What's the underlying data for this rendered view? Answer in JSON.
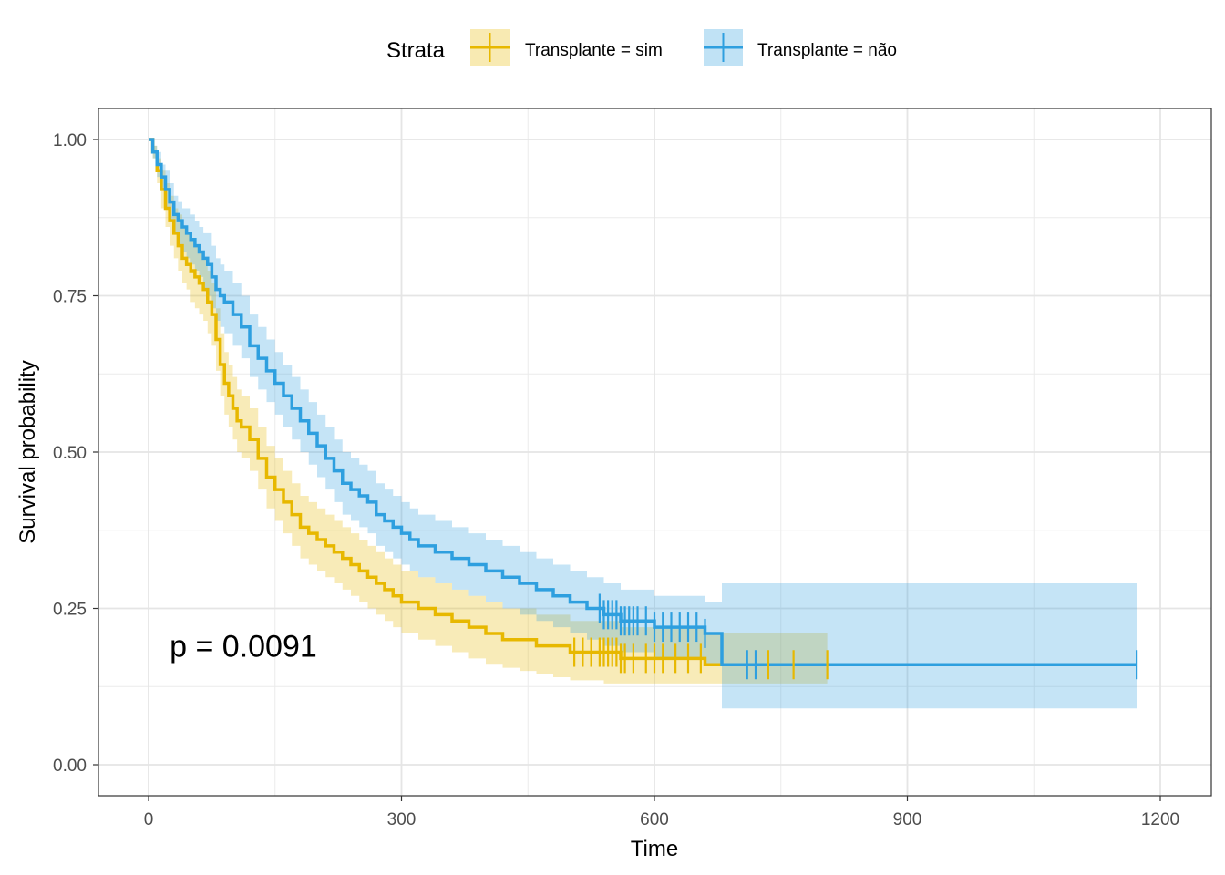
{
  "chart_data": {
    "type": "line",
    "subtype": "kaplan-meier",
    "xlabel": "Time",
    "ylabel": "Survival probability",
    "xlim": [
      -60,
      1260
    ],
    "ylim": [
      -0.05,
      1.05
    ],
    "x_ticks": [
      0,
      300,
      600,
      900,
      1200
    ],
    "x_tick_labels": [
      "0",
      "300",
      "600",
      "900",
      "1200"
    ],
    "y_ticks": [
      0,
      0.25,
      0.5,
      0.75,
      1.0
    ],
    "y_tick_labels": [
      "0.00",
      "0.25",
      "0.50",
      "0.75",
      "1.00"
    ],
    "grid": true,
    "legend": {
      "title": "Strata",
      "position": "top",
      "entries": [
        "Transplante = sim",
        "Transplante = não"
      ]
    },
    "annotation": {
      "text": "p = 0.0091",
      "x": 25,
      "y": 0.19
    },
    "series": [
      {
        "name": "Transplante = sim",
        "color": "#E7B800",
        "x": [
          0,
          5,
          10,
          15,
          20,
          25,
          30,
          35,
          40,
          45,
          50,
          55,
          60,
          65,
          70,
          75,
          80,
          85,
          90,
          95,
          100,
          105,
          110,
          120,
          130,
          140,
          150,
          160,
          170,
          180,
          190,
          200,
          210,
          220,
          230,
          240,
          250,
          260,
          270,
          280,
          290,
          300,
          320,
          340,
          360,
          380,
          400,
          420,
          440,
          460,
          480,
          500,
          540,
          560,
          580,
          600,
          620,
          660,
          805
        ],
        "y": [
          1.0,
          0.98,
          0.95,
          0.92,
          0.89,
          0.87,
          0.85,
          0.83,
          0.81,
          0.8,
          0.79,
          0.78,
          0.77,
          0.76,
          0.74,
          0.72,
          0.68,
          0.64,
          0.61,
          0.59,
          0.57,
          0.55,
          0.54,
          0.52,
          0.49,
          0.46,
          0.44,
          0.42,
          0.4,
          0.38,
          0.37,
          0.36,
          0.35,
          0.34,
          0.33,
          0.32,
          0.31,
          0.3,
          0.29,
          0.28,
          0.27,
          0.26,
          0.25,
          0.24,
          0.23,
          0.22,
          0.21,
          0.2,
          0.2,
          0.19,
          0.19,
          0.18,
          0.18,
          0.17,
          0.17,
          0.17,
          0.17,
          0.16,
          0.16
        ],
        "lower": [
          1.0,
          0.97,
          0.93,
          0.89,
          0.86,
          0.83,
          0.81,
          0.79,
          0.77,
          0.76,
          0.74,
          0.73,
          0.72,
          0.71,
          0.69,
          0.67,
          0.63,
          0.59,
          0.56,
          0.54,
          0.52,
          0.5,
          0.49,
          0.47,
          0.44,
          0.41,
          0.39,
          0.37,
          0.35,
          0.33,
          0.32,
          0.31,
          0.3,
          0.29,
          0.28,
          0.27,
          0.26,
          0.25,
          0.24,
          0.23,
          0.22,
          0.21,
          0.2,
          0.19,
          0.18,
          0.17,
          0.16,
          0.155,
          0.15,
          0.145,
          0.14,
          0.135,
          0.13,
          0.13,
          0.13,
          0.13,
          0.13,
          0.13,
          0.13
        ],
        "upper": [
          1.0,
          0.99,
          0.97,
          0.95,
          0.93,
          0.91,
          0.89,
          0.88,
          0.86,
          0.85,
          0.84,
          0.83,
          0.82,
          0.81,
          0.79,
          0.77,
          0.73,
          0.69,
          0.66,
          0.64,
          0.62,
          0.6,
          0.59,
          0.57,
          0.54,
          0.51,
          0.49,
          0.47,
          0.45,
          0.43,
          0.42,
          0.41,
          0.4,
          0.39,
          0.38,
          0.37,
          0.36,
          0.35,
          0.34,
          0.33,
          0.32,
          0.31,
          0.3,
          0.29,
          0.28,
          0.27,
          0.26,
          0.25,
          0.25,
          0.24,
          0.24,
          0.23,
          0.23,
          0.22,
          0.22,
          0.22,
          0.22,
          0.21,
          0.21
        ],
        "censor_x": [
          505,
          515,
          525,
          535,
          540,
          545,
          550,
          555,
          560,
          565,
          575,
          590,
          600,
          610,
          625,
          640,
          655,
          735,
          765,
          805
        ]
      },
      {
        "name": "Transplante = não",
        "color": "#2E9FDF",
        "x": [
          0,
          5,
          10,
          15,
          20,
          25,
          30,
          35,
          40,
          45,
          50,
          55,
          60,
          65,
          70,
          75,
          80,
          85,
          90,
          100,
          110,
          120,
          130,
          140,
          150,
          160,
          170,
          180,
          190,
          200,
          210,
          220,
          230,
          240,
          250,
          260,
          270,
          280,
          290,
          300,
          310,
          320,
          340,
          360,
          380,
          400,
          420,
          440,
          460,
          480,
          500,
          520,
          540,
          560,
          600,
          660,
          680,
          1172
        ],
        "y": [
          1.0,
          0.98,
          0.96,
          0.94,
          0.92,
          0.9,
          0.88,
          0.87,
          0.86,
          0.85,
          0.84,
          0.83,
          0.82,
          0.81,
          0.8,
          0.78,
          0.76,
          0.75,
          0.74,
          0.72,
          0.7,
          0.67,
          0.65,
          0.63,
          0.61,
          0.59,
          0.57,
          0.55,
          0.53,
          0.51,
          0.49,
          0.47,
          0.45,
          0.44,
          0.43,
          0.42,
          0.4,
          0.39,
          0.38,
          0.37,
          0.36,
          0.35,
          0.34,
          0.33,
          0.32,
          0.31,
          0.3,
          0.29,
          0.28,
          0.27,
          0.26,
          0.25,
          0.24,
          0.23,
          0.22,
          0.21,
          0.16,
          0.16
        ],
        "lower": [
          1.0,
          0.97,
          0.94,
          0.92,
          0.89,
          0.87,
          0.85,
          0.83,
          0.82,
          0.81,
          0.8,
          0.79,
          0.78,
          0.76,
          0.75,
          0.73,
          0.71,
          0.7,
          0.69,
          0.67,
          0.65,
          0.62,
          0.6,
          0.58,
          0.56,
          0.54,
          0.52,
          0.5,
          0.48,
          0.46,
          0.44,
          0.42,
          0.4,
          0.39,
          0.38,
          0.37,
          0.35,
          0.34,
          0.33,
          0.32,
          0.31,
          0.3,
          0.29,
          0.28,
          0.27,
          0.26,
          0.25,
          0.24,
          0.23,
          0.22,
          0.21,
          0.2,
          0.19,
          0.18,
          0.17,
          0.16,
          0.09,
          0.09
        ],
        "upper": [
          1.0,
          0.99,
          0.98,
          0.96,
          0.95,
          0.93,
          0.91,
          0.9,
          0.89,
          0.89,
          0.88,
          0.87,
          0.86,
          0.85,
          0.85,
          0.83,
          0.81,
          0.8,
          0.79,
          0.77,
          0.75,
          0.72,
          0.7,
          0.68,
          0.66,
          0.64,
          0.62,
          0.6,
          0.58,
          0.56,
          0.54,
          0.52,
          0.5,
          0.49,
          0.48,
          0.47,
          0.45,
          0.44,
          0.43,
          0.42,
          0.41,
          0.4,
          0.39,
          0.38,
          0.37,
          0.36,
          0.35,
          0.34,
          0.33,
          0.32,
          0.31,
          0.3,
          0.29,
          0.28,
          0.27,
          0.26,
          0.29,
          0.29
        ],
        "censor_x": [
          535,
          540,
          545,
          550,
          555,
          560,
          565,
          570,
          575,
          580,
          590,
          600,
          610,
          620,
          630,
          640,
          650,
          660,
          710,
          720,
          1172
        ]
      }
    ]
  }
}
